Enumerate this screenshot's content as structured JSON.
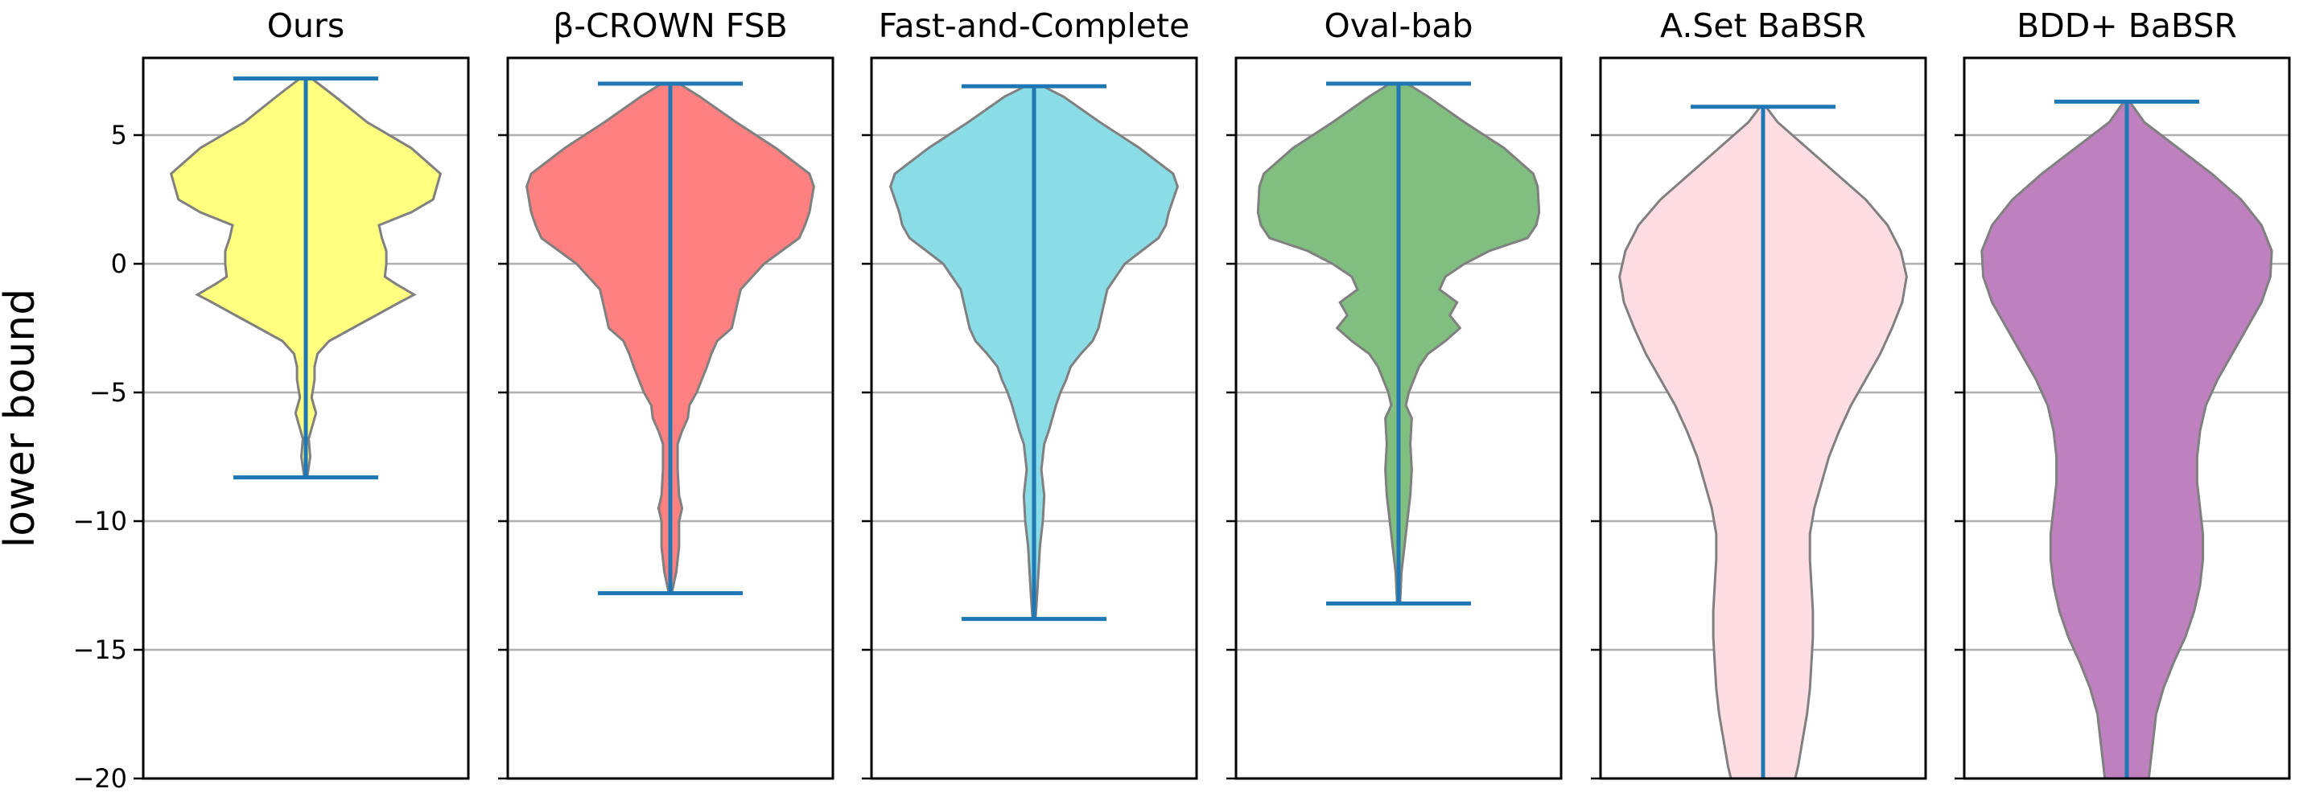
{
  "chart_data": {
    "type": "violin",
    "ylabel": "lower bound",
    "ylim": [
      -20,
      8
    ],
    "yticks": [
      -20,
      -15,
      -10,
      -5,
      0,
      5
    ],
    "grid": true,
    "colors": {
      "whisker": "#1f77b4",
      "violin_edge": "#808080"
    },
    "panels": [
      {
        "title": "Ours",
        "color": "#ffff80",
        "max": 7.2,
        "min": -8.3,
        "density": [
          [
            7.2,
            0.04
          ],
          [
            6.5,
            0.2
          ],
          [
            5.5,
            0.42
          ],
          [
            4.5,
            0.72
          ],
          [
            3.5,
            0.92
          ],
          [
            2.5,
            0.87
          ],
          [
            2.0,
            0.72
          ],
          [
            1.5,
            0.5
          ],
          [
            1.0,
            0.52
          ],
          [
            0.5,
            0.55
          ],
          [
            0.0,
            0.55
          ],
          [
            -0.5,
            0.54
          ],
          [
            -0.8,
            0.62
          ],
          [
            -1.2,
            0.74
          ],
          [
            -1.5,
            0.64
          ],
          [
            -2.0,
            0.48
          ],
          [
            -2.5,
            0.32
          ],
          [
            -3.0,
            0.16
          ],
          [
            -3.5,
            0.08
          ],
          [
            -4.0,
            0.06
          ],
          [
            -4.5,
            0.06
          ],
          [
            -5.2,
            0.04
          ],
          [
            -5.8,
            0.07
          ],
          [
            -6.2,
            0.05
          ],
          [
            -6.8,
            0.02
          ],
          [
            -7.5,
            0.03
          ],
          [
            -8.3,
            0.01
          ]
        ]
      },
      {
        "title": "β-CROWN FSB",
        "color": "#ff8080",
        "max": 7.0,
        "min": -12.8,
        "density": [
          [
            7.0,
            0.06
          ],
          [
            6.5,
            0.2
          ],
          [
            5.5,
            0.45
          ],
          [
            4.5,
            0.72
          ],
          [
            3.5,
            0.95
          ],
          [
            3.0,
            0.98
          ],
          [
            2.0,
            0.95
          ],
          [
            1.5,
            0.92
          ],
          [
            1.0,
            0.88
          ],
          [
            0.0,
            0.64
          ],
          [
            -0.5,
            0.56
          ],
          [
            -1.0,
            0.48
          ],
          [
            -1.5,
            0.46
          ],
          [
            -2.5,
            0.42
          ],
          [
            -3.0,
            0.32
          ],
          [
            -3.5,
            0.28
          ],
          [
            -4.0,
            0.25
          ],
          [
            -5.0,
            0.18
          ],
          [
            -5.5,
            0.13
          ],
          [
            -6.0,
            0.12
          ],
          [
            -6.5,
            0.08
          ],
          [
            -7.0,
            0.05
          ],
          [
            -8.0,
            0.05
          ],
          [
            -9.0,
            0.06
          ],
          [
            -9.5,
            0.08
          ],
          [
            -10.0,
            0.06
          ],
          [
            -11.0,
            0.06
          ],
          [
            -12.0,
            0.04
          ],
          [
            -12.8,
            0.01
          ]
        ]
      },
      {
        "title": "Fast-and-Complete",
        "color": "#8adde6",
        "max": 6.9,
        "min": -13.8,
        "density": [
          [
            6.9,
            0.06
          ],
          [
            6.5,
            0.2
          ],
          [
            5.5,
            0.45
          ],
          [
            4.5,
            0.72
          ],
          [
            3.5,
            0.95
          ],
          [
            3.0,
            0.98
          ],
          [
            2.0,
            0.92
          ],
          [
            1.5,
            0.9
          ],
          [
            1.0,
            0.85
          ],
          [
            0.0,
            0.62
          ],
          [
            -1.0,
            0.5
          ],
          [
            -1.5,
            0.48
          ],
          [
            -2.5,
            0.44
          ],
          [
            -3.0,
            0.4
          ],
          [
            -3.5,
            0.32
          ],
          [
            -4.0,
            0.25
          ],
          [
            -4.5,
            0.22
          ],
          [
            -5.0,
            0.18
          ],
          [
            -5.5,
            0.15
          ],
          [
            -6.5,
            0.1
          ],
          [
            -7.0,
            0.07
          ],
          [
            -8.0,
            0.05
          ],
          [
            -9.0,
            0.07
          ],
          [
            -10.0,
            0.06
          ],
          [
            -11.0,
            0.04
          ],
          [
            -12.0,
            0.03
          ],
          [
            -13.0,
            0.02
          ],
          [
            -13.8,
            0.01
          ]
        ]
      },
      {
        "title": "Oval-bab",
        "color": "#80bf80",
        "max": 7.0,
        "min": -13.2,
        "density": [
          [
            7.0,
            0.06
          ],
          [
            6.5,
            0.2
          ],
          [
            5.5,
            0.45
          ],
          [
            4.5,
            0.72
          ],
          [
            3.5,
            0.92
          ],
          [
            3.0,
            0.95
          ],
          [
            2.0,
            0.96
          ],
          [
            1.5,
            0.94
          ],
          [
            1.0,
            0.88
          ],
          [
            0.5,
            0.62
          ],
          [
            0.0,
            0.45
          ],
          [
            -0.5,
            0.32
          ],
          [
            -1.0,
            0.28
          ],
          [
            -1.5,
            0.4
          ],
          [
            -2.0,
            0.35
          ],
          [
            -2.5,
            0.42
          ],
          [
            -3.0,
            0.32
          ],
          [
            -3.5,
            0.2
          ],
          [
            -4.0,
            0.14
          ],
          [
            -5.0,
            0.07
          ],
          [
            -5.5,
            0.05
          ],
          [
            -6.0,
            0.09
          ],
          [
            -7.0,
            0.08
          ],
          [
            -8.0,
            0.09
          ],
          [
            -9.0,
            0.08
          ],
          [
            -10.0,
            0.06
          ],
          [
            -11.0,
            0.04
          ],
          [
            -12.0,
            0.02
          ],
          [
            -13.2,
            0.01
          ]
        ]
      },
      {
        "title": "A.Set BaBSR",
        "color": "#ffdde3",
        "max": 6.1,
        "min": -20,
        "density": [
          [
            6.1,
            0.02
          ],
          [
            5.5,
            0.1
          ],
          [
            4.5,
            0.3
          ],
          [
            3.5,
            0.5
          ],
          [
            2.5,
            0.7
          ],
          [
            1.5,
            0.85
          ],
          [
            0.5,
            0.94
          ],
          [
            -0.5,
            0.98
          ],
          [
            -1.5,
            0.95
          ],
          [
            -2.5,
            0.88
          ],
          [
            -3.5,
            0.8
          ],
          [
            -4.5,
            0.7
          ],
          [
            -5.5,
            0.6
          ],
          [
            -6.5,
            0.52
          ],
          [
            -7.5,
            0.45
          ],
          [
            -8.5,
            0.4
          ],
          [
            -9.5,
            0.35
          ],
          [
            -10.5,
            0.32
          ],
          [
            -11.5,
            0.32
          ],
          [
            -12.5,
            0.33
          ],
          [
            -13.5,
            0.34
          ],
          [
            -14.5,
            0.34
          ],
          [
            -15.5,
            0.33
          ],
          [
            -16.5,
            0.32
          ],
          [
            -17.5,
            0.3
          ],
          [
            -18.5,
            0.27
          ],
          [
            -19.5,
            0.24
          ],
          [
            -20.0,
            0.22
          ]
        ]
      },
      {
        "title": "BDD+ BaBSR",
        "color": "#bf80bf",
        "max": 6.3,
        "min": -20,
        "density": [
          [
            6.3,
            0.02
          ],
          [
            5.5,
            0.12
          ],
          [
            4.5,
            0.35
          ],
          [
            3.5,
            0.58
          ],
          [
            2.5,
            0.78
          ],
          [
            1.5,
            0.92
          ],
          [
            0.5,
            0.99
          ],
          [
            -0.5,
            0.98
          ],
          [
            -1.5,
            0.92
          ],
          [
            -2.5,
            0.82
          ],
          [
            -3.5,
            0.72
          ],
          [
            -4.5,
            0.62
          ],
          [
            -5.5,
            0.54
          ],
          [
            -6.5,
            0.5
          ],
          [
            -7.5,
            0.48
          ],
          [
            -8.5,
            0.48
          ],
          [
            -9.5,
            0.5
          ],
          [
            -10.5,
            0.52
          ],
          [
            -11.5,
            0.52
          ],
          [
            -12.5,
            0.5
          ],
          [
            -13.5,
            0.46
          ],
          [
            -14.5,
            0.4
          ],
          [
            -15.5,
            0.32
          ],
          [
            -16.5,
            0.25
          ],
          [
            -17.5,
            0.2
          ],
          [
            -18.5,
            0.18
          ],
          [
            -19.5,
            0.16
          ],
          [
            -20.0,
            0.15
          ]
        ]
      }
    ]
  }
}
